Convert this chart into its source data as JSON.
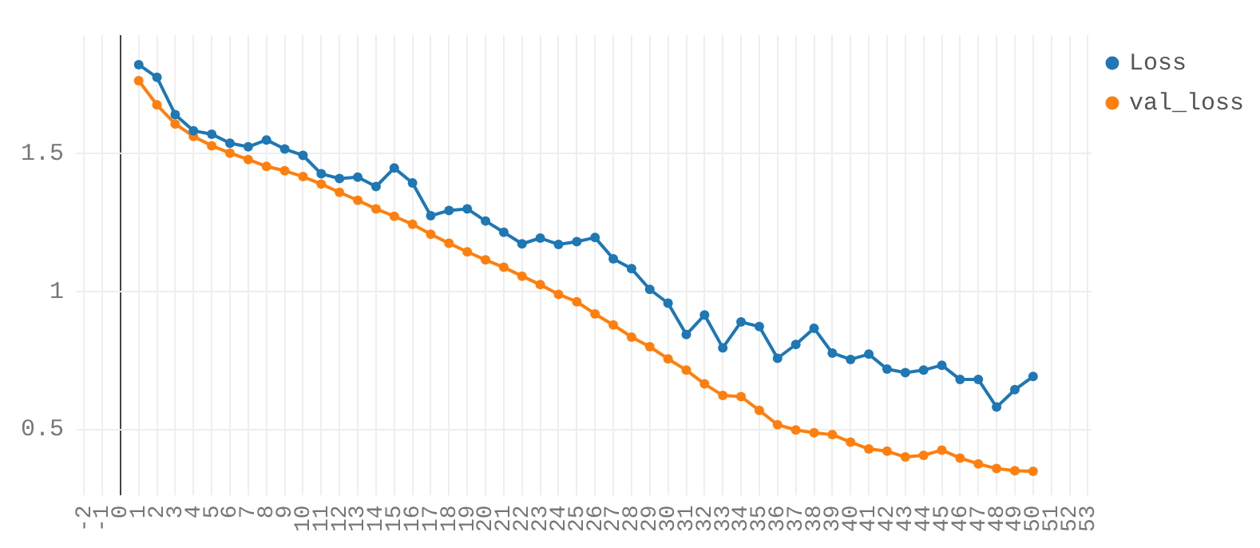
{
  "chart_data": {
    "type": "line",
    "x": [
      1,
      2,
      3,
      4,
      5,
      6,
      7,
      8,
      9,
      10,
      11,
      12,
      13,
      14,
      15,
      16,
      17,
      18,
      19,
      20,
      21,
      22,
      23,
      24,
      25,
      26,
      27,
      28,
      29,
      30,
      31,
      32,
      33,
      34,
      35,
      36,
      37,
      38,
      39,
      40,
      41,
      42,
      43,
      44,
      45,
      46,
      47,
      48,
      49,
      50
    ],
    "series": [
      {
        "name": "Loss",
        "color": "#1f77b4",
        "values": [
          1.823,
          1.777,
          1.642,
          1.583,
          1.571,
          1.538,
          1.525,
          1.55,
          1.517,
          1.494,
          1.427,
          1.41,
          1.415,
          1.381,
          1.448,
          1.394,
          1.275,
          1.294,
          1.3,
          1.256,
          1.215,
          1.173,
          1.194,
          1.171,
          1.181,
          1.196,
          1.119,
          1.083,
          1.008,
          0.958,
          0.844,
          0.915,
          0.796,
          0.89,
          0.873,
          0.758,
          0.808,
          0.867,
          0.777,
          0.754,
          0.773,
          0.719,
          0.706,
          0.715,
          0.733,
          0.681,
          0.681,
          0.581,
          0.644,
          0.692
        ]
      },
      {
        "name": "val_loss",
        "color": "#ff7f0e",
        "values": [
          1.765,
          1.677,
          1.608,
          1.563,
          1.529,
          1.502,
          1.479,
          1.454,
          1.438,
          1.417,
          1.39,
          1.36,
          1.331,
          1.3,
          1.273,
          1.244,
          1.208,
          1.175,
          1.144,
          1.115,
          1.088,
          1.056,
          1.025,
          0.99,
          0.963,
          0.919,
          0.879,
          0.835,
          0.8,
          0.756,
          0.715,
          0.665,
          0.623,
          0.619,
          0.569,
          0.517,
          0.498,
          0.488,
          0.481,
          0.454,
          0.429,
          0.421,
          0.4,
          0.406,
          0.425,
          0.396,
          0.375,
          0.358,
          0.35,
          0.348
        ]
      }
    ],
    "xlim": [
      -2.4,
      53.2
    ],
    "xticks": [
      -2,
      -1,
      0,
      1,
      2,
      3,
      4,
      5,
      6,
      7,
      8,
      9,
      10,
      11,
      12,
      13,
      14,
      15,
      16,
      17,
      18,
      19,
      20,
      21,
      22,
      23,
      24,
      25,
      26,
      27,
      28,
      29,
      30,
      31,
      32,
      33,
      34,
      35,
      36,
      37,
      38,
      39,
      40,
      41,
      42,
      43,
      44,
      45,
      46,
      47,
      48,
      49,
      50,
      51,
      52,
      53
    ],
    "ylim": [
      0.26,
      1.93
    ],
    "yticks": [
      0.5,
      1,
      1.5
    ],
    "grid": true,
    "legend": "top right",
    "marker": "circle",
    "line_style": "solid"
  }
}
